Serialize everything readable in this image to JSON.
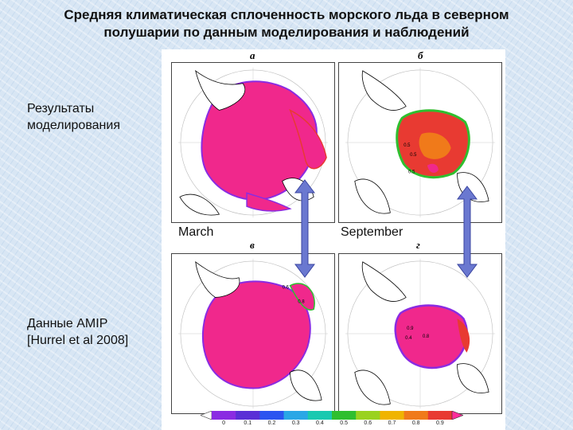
{
  "title": {
    "line1": "Средняя климатическая сплоченность морского льда в северном",
    "line2": "полушарии по данным моделирования и наблюдений"
  },
  "labels": {
    "model": {
      "line1": "Результаты",
      "line2": "моделирования"
    },
    "amip": {
      "line1": "Данные AMIP",
      "line2": "[Hurrel et al 2008]"
    },
    "march": "March",
    "september": "September"
  },
  "panels": {
    "a": "а",
    "b": "б",
    "v": "в",
    "g": "г"
  },
  "contour_labels": [
    "0.5",
    "0.5",
    "0.5",
    "0.6",
    "0.8",
    "0.9",
    "0.4",
    "0.8"
  ],
  "colorbar": {
    "ticks": [
      "0",
      "0.1",
      "0.2",
      "0.3",
      "0.4",
      "0.5",
      "0.6",
      "0.7",
      "0.8",
      "0.9"
    ],
    "colors": [
      "#8a2be2",
      "#5a2fd6",
      "#2b55f0",
      "#2aa7e6",
      "#19c9b0",
      "#2fbf2f",
      "#9ad21f",
      "#f0b400",
      "#f07a1a",
      "#e83a32",
      "#f03cb4",
      "#ff2f9a"
    ]
  },
  "colors": {
    "ice": "#f0288c",
    "ice_edge": "#e0206a",
    "land": "#ffffff",
    "arrow": "#6a78d0"
  }
}
